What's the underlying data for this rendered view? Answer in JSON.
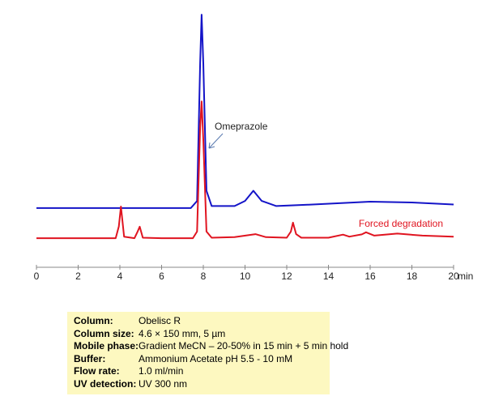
{
  "chart_data": {
    "type": "line",
    "x_label": "min",
    "xlim": [
      0,
      20
    ],
    "xticks": [
      0,
      2,
      4,
      6,
      8,
      10,
      12,
      14,
      16,
      18,
      20
    ],
    "ylim": [
      0,
      100
    ],
    "annotations": [
      "Omeprazole"
    ],
    "series": [
      {
        "color": "#1414c8",
        "x": [
          0,
          7.4,
          7.7,
          7.85,
          7.92,
          8.0,
          8.15,
          8.4,
          9.5,
          10.0,
          10.4,
          10.8,
          11.5,
          13,
          16,
          18,
          20
        ],
        "values": [
          23.2,
          23.2,
          26,
          80,
          99,
          80,
          30,
          24,
          24,
          26,
          30,
          26,
          24,
          24.5,
          25.7,
          25.4,
          24.6
        ]
      },
      {
        "name": "Forced degradation",
        "color": "#e01420",
        "x": [
          0,
          3.8,
          3.95,
          4.05,
          4.2,
          4.7,
          4.85,
          4.95,
          5.1,
          6,
          7.5,
          7.7,
          7.85,
          7.92,
          8.0,
          8.15,
          8.4,
          9.5,
          10.5,
          11,
          12,
          12.2,
          12.3,
          12.45,
          12.7,
          14,
          14.7,
          15,
          15.6,
          15.8,
          16.2,
          17.3,
          18.5,
          20
        ],
        "values": [
          11.4,
          11.4,
          16,
          23.8,
          12,
          11.4,
          14,
          15.9,
          11.6,
          11.4,
          11.4,
          14,
          55,
          65,
          50,
          14,
          11.6,
          11.8,
          13,
          11.8,
          11.6,
          14,
          17.5,
          13,
          11.6,
          11.6,
          12.8,
          12,
          12.9,
          13.7,
          12.4,
          13.2,
          12.4,
          12
        ]
      }
    ]
  },
  "info_table": {
    "rows": [
      [
        "Column:",
        "Obelisc R"
      ],
      [
        "Column size:",
        "4.6 × 150 mm, 5 µm"
      ],
      [
        "Mobile phase:",
        "Gradient MeCN – 20-50% in 15 min + 5 min hold"
      ],
      [
        "Buffer:",
        "Ammonium  Acetate  pH 5.5  - 10 mM"
      ],
      [
        "Flow rate:",
        "1.0 ml/min"
      ],
      [
        "UV detection:",
        "UV 300 nm"
      ]
    ]
  }
}
